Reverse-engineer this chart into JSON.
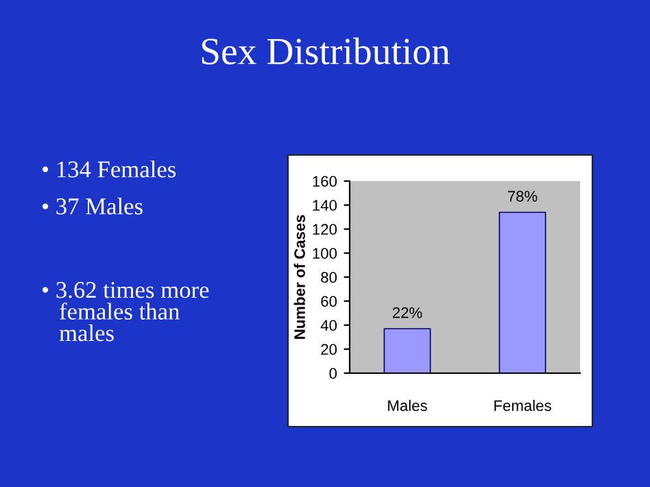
{
  "chart_data": {
    "type": "bar",
    "title": "Sex Distribution",
    "ylabel": "Number of Cases",
    "categories": [
      "Males",
      "Females"
    ],
    "values": [
      37,
      134
    ],
    "color": "#9999ff",
    "ylim": [
      0,
      160
    ],
    "yticks": [
      0,
      20,
      40,
      60,
      80,
      100,
      120,
      140,
      160
    ],
    "annotations": [
      "• 134 Females",
      "• 37 Males",
      "• 3.62 times more\n   females than\n   males",
      {
        "text": "22%",
        "x": "Males",
        "y": 37
      },
      {
        "text": "78%",
        "x": "Females",
        "y": 134
      }
    ]
  }
}
